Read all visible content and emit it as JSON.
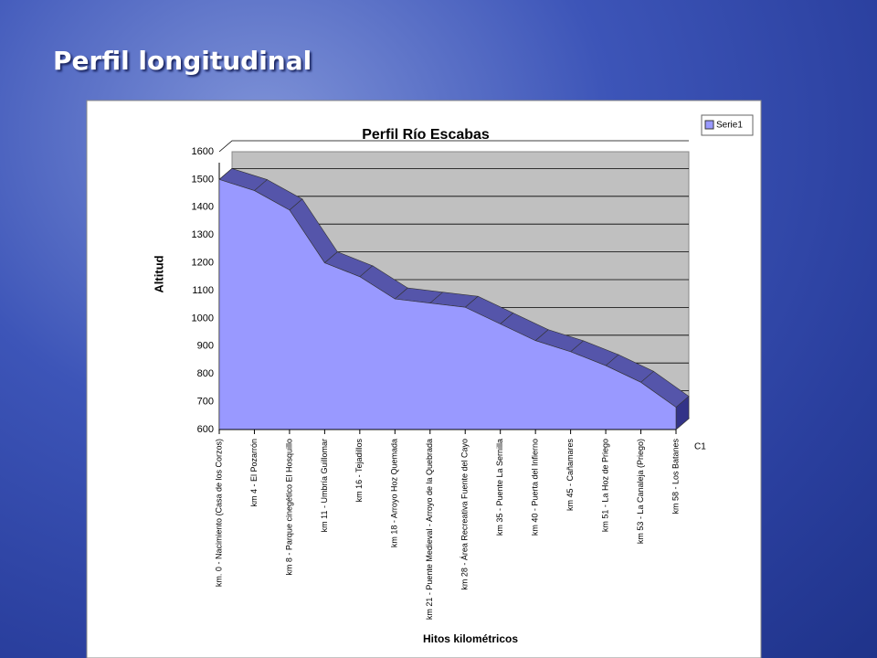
{
  "slide_title": "Perfil longitudinal",
  "chart_data": {
    "type": "area",
    "title": "Perfil Río Escabas",
    "y_label": "Altitud",
    "x_label": "Hitos kilométricos",
    "depth_label": "C1",
    "categories": [
      "km. 0 - Nacimiento (Casa de los Corzos)",
      "km 4 - El Pozarrón",
      "km 8 - Parque cinegético El Hosquillo",
      "km 11 - Umbría Guillomar",
      "km 16 - Tejadillos",
      "km 18 - Arroyo Hoz Quemada",
      "km 21 - Puente Medieval - Arroyo de la Quebrada",
      "km 28 - Área Recreativa Fuente del Cayo",
      "km 35 - Puente La Sernilla",
      "km 40 - Puerta del Infierno",
      "km 45 - Cañamares",
      "km 51 - La Hoz de Priego",
      "km 53 - La Canaleja (Priego)",
      "km 58 - Los Batanes"
    ],
    "series": [
      {
        "name": "Serie1",
        "color": "#9999ff",
        "values": [
          1500,
          1460,
          1390,
          1200,
          1150,
          1070,
          1055,
          1040,
          980,
          920,
          880,
          830,
          770,
          680
        ]
      }
    ],
    "ylim": [
      600,
      1600
    ],
    "yticks": [
      600,
      700,
      800,
      900,
      1000,
      1100,
      1200,
      1300,
      1400,
      1500,
      1600
    ],
    "grid": true,
    "legend": "top-right"
  }
}
